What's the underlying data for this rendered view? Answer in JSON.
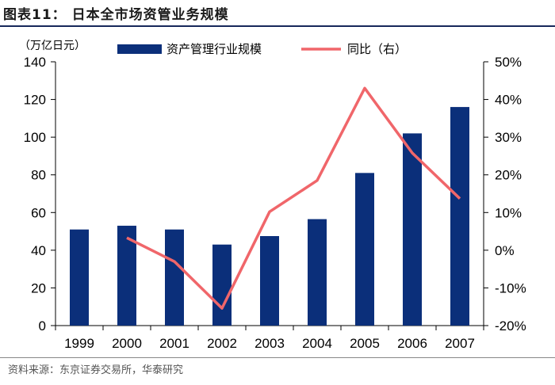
{
  "figure": {
    "title": "图表11： 日本全市场资管业务规模",
    "source": "资料来源：东京证券交易所，华泰研究"
  },
  "chart_data": {
    "type": "bar",
    "categories": [
      "1999",
      "2000",
      "2001",
      "2002",
      "2003",
      "2004",
      "2005",
      "2006",
      "2007"
    ],
    "series": [
      {
        "name": "资产管理行业规模",
        "type": "bar",
        "axis": "left",
        "color": "#0b2f7a",
        "values": [
          51,
          53,
          51,
          43,
          47.5,
          56.5,
          81,
          102,
          116
        ]
      },
      {
        "name": "同比（右）",
        "type": "line",
        "axis": "right",
        "color": "#f0666a",
        "values": [
          null,
          3.3,
          -3.0,
          -15.4,
          10.2,
          18.5,
          43.0,
          25.8,
          13.7
        ]
      }
    ],
    "y_left": {
      "unit_label": "（万亿日元）",
      "min": 0,
      "max": 140,
      "ticks": [
        0,
        20,
        40,
        60,
        80,
        100,
        120,
        140
      ]
    },
    "y_right": {
      "min": -20,
      "max": 50,
      "ticks": [
        -20,
        -10,
        0,
        10,
        20,
        30,
        40,
        50
      ],
      "tick_labels": [
        "-20%",
        "-10%",
        "0%",
        "10%",
        "20%",
        "30%",
        "40%",
        "50%"
      ]
    },
    "legend_position": "top"
  }
}
